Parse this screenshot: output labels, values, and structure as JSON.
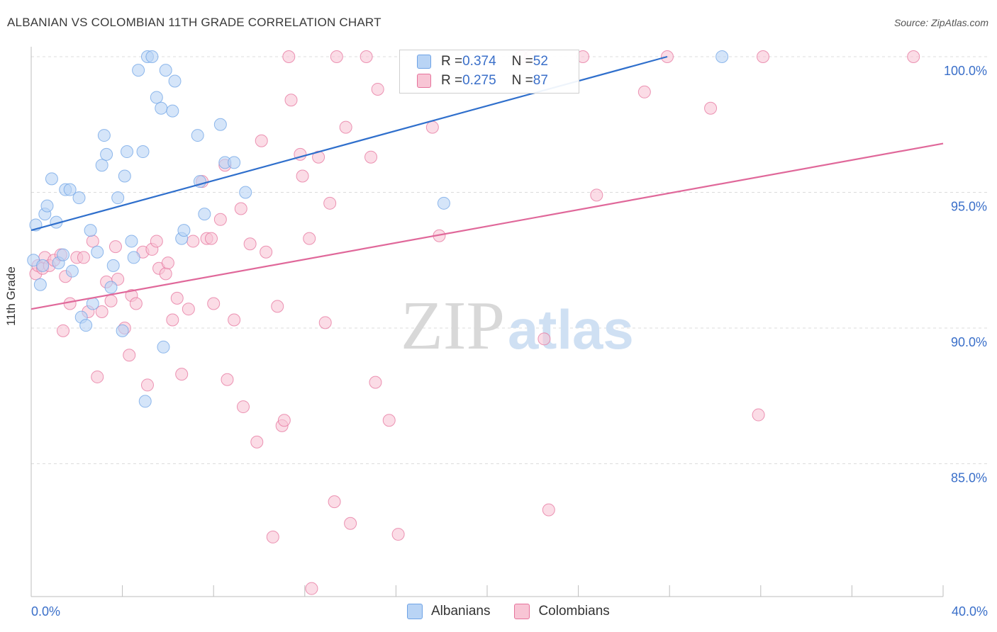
{
  "header": {
    "title": "ALBANIAN VS COLOMBIAN 11TH GRADE CORRELATION CHART",
    "source": "Source: ZipAtlas.com"
  },
  "watermark": {
    "text_zip": "ZIP",
    "text_atlas": "atlas"
  },
  "legend": {
    "rows": [
      {
        "r_label": "R = ",
        "r_value": "0.374",
        "n_label": "N = ",
        "n_value": "52",
        "color": "#a8c8f0"
      },
      {
        "r_label": "R = ",
        "r_value": "0.275",
        "n_label": "N = ",
        "n_value": "87",
        "color": "#f6b8cb"
      }
    ]
  },
  "bottom_legend": {
    "albanians": "Albanians",
    "colombians": "Colombians"
  },
  "x_axis_labels": {
    "min": "0.0%",
    "max": "40.0%"
  },
  "chart_data": {
    "type": "scatter",
    "title": "ALBANIAN VS COLOMBIAN 11TH GRADE CORRELATION CHART",
    "xlabel": "",
    "ylabel": "11th Grade",
    "xlim": [
      0,
      40
    ],
    "ylim": [
      80.3,
      100.6
    ],
    "y_ticks": [
      85,
      90,
      95,
      100
    ],
    "y_tick_labels": [
      "85.0%",
      "90.0%",
      "95.0%",
      "100.0%"
    ],
    "grid": "horizontal-dashed",
    "series": [
      {
        "name": "Albanians",
        "color": "#6ea3e6",
        "fill": "#b9d4f5",
        "trend": [
          [
            0.0,
            93.6
          ],
          [
            27.9,
            100.0
          ]
        ],
        "points": [
          [
            0.1,
            92.5
          ],
          [
            0.2,
            93.8
          ],
          [
            0.4,
            91.6
          ],
          [
            0.6,
            94.2
          ],
          [
            0.7,
            94.5
          ],
          [
            0.9,
            95.5
          ],
          [
            1.1,
            93.9
          ],
          [
            1.2,
            92.4
          ],
          [
            1.4,
            92.7
          ],
          [
            1.5,
            95.1
          ],
          [
            1.7,
            95.1
          ],
          [
            1.8,
            92.1
          ],
          [
            2.1,
            94.8
          ],
          [
            2.2,
            90.4
          ],
          [
            2.4,
            90.1
          ],
          [
            2.6,
            93.6
          ],
          [
            2.7,
            90.9
          ],
          [
            2.9,
            92.8
          ],
          [
            3.1,
            96.0
          ],
          [
            3.2,
            97.1
          ],
          [
            3.3,
            96.4
          ],
          [
            3.5,
            91.5
          ],
          [
            3.6,
            92.3
          ],
          [
            3.8,
            94.8
          ],
          [
            4.0,
            89.9
          ],
          [
            4.1,
            95.6
          ],
          [
            4.2,
            96.5
          ],
          [
            4.4,
            93.2
          ],
          [
            4.5,
            92.6
          ],
          [
            4.7,
            99.5
          ],
          [
            4.9,
            96.5
          ],
          [
            5.0,
            87.3
          ],
          [
            5.1,
            100.0
          ],
          [
            5.3,
            100.0
          ],
          [
            5.5,
            98.5
          ],
          [
            5.7,
            98.1
          ],
          [
            5.8,
            89.3
          ],
          [
            5.9,
            99.5
          ],
          [
            6.2,
            98.0
          ],
          [
            6.3,
            99.1
          ],
          [
            6.6,
            93.3
          ],
          [
            6.7,
            93.6
          ],
          [
            7.3,
            97.1
          ],
          [
            7.4,
            95.4
          ],
          [
            7.6,
            94.2
          ],
          [
            8.3,
            97.5
          ],
          [
            8.5,
            96.1
          ],
          [
            8.9,
            96.1
          ],
          [
            9.4,
            95.0
          ],
          [
            18.1,
            94.6
          ],
          [
            30.3,
            100.0
          ],
          [
            0.5,
            92.3
          ]
        ]
      },
      {
        "name": "Colombians",
        "color": "#e6739c",
        "fill": "#f8c5d5",
        "trend": [
          [
            0.0,
            90.7
          ],
          [
            40.0,
            96.8
          ]
        ],
        "points": [
          [
            0.2,
            92.0
          ],
          [
            0.3,
            92.3
          ],
          [
            0.5,
            92.2
          ],
          [
            0.6,
            92.6
          ],
          [
            0.8,
            92.3
          ],
          [
            1.0,
            92.5
          ],
          [
            1.3,
            92.7
          ],
          [
            1.4,
            89.9
          ],
          [
            1.5,
            91.9
          ],
          [
            1.7,
            90.9
          ],
          [
            2.0,
            92.6
          ],
          [
            2.3,
            92.6
          ],
          [
            2.5,
            90.6
          ],
          [
            2.7,
            93.2
          ],
          [
            2.9,
            88.2
          ],
          [
            3.1,
            90.6
          ],
          [
            3.3,
            91.7
          ],
          [
            3.5,
            91.0
          ],
          [
            3.7,
            93.0
          ],
          [
            3.8,
            91.8
          ],
          [
            4.1,
            90.0
          ],
          [
            4.3,
            89.0
          ],
          [
            4.4,
            91.2
          ],
          [
            4.6,
            90.9
          ],
          [
            4.9,
            92.8
          ],
          [
            5.1,
            87.9
          ],
          [
            5.3,
            92.9
          ],
          [
            5.5,
            93.2
          ],
          [
            5.6,
            92.2
          ],
          [
            5.9,
            92.0
          ],
          [
            6.0,
            92.4
          ],
          [
            6.2,
            90.3
          ],
          [
            6.4,
            91.1
          ],
          [
            6.6,
            88.3
          ],
          [
            6.9,
            90.7
          ],
          [
            7.1,
            93.2
          ],
          [
            7.5,
            95.4
          ],
          [
            7.7,
            93.3
          ],
          [
            7.9,
            93.3
          ],
          [
            8.0,
            90.9
          ],
          [
            8.3,
            94.0
          ],
          [
            8.5,
            96.0
          ],
          [
            8.6,
            88.1
          ],
          [
            8.9,
            90.3
          ],
          [
            9.2,
            94.4
          ],
          [
            9.3,
            87.1
          ],
          [
            9.6,
            93.1
          ],
          [
            9.9,
            85.8
          ],
          [
            10.1,
            96.9
          ],
          [
            10.3,
            92.8
          ],
          [
            10.6,
            82.3
          ],
          [
            10.8,
            90.8
          ],
          [
            11.0,
            86.4
          ],
          [
            11.1,
            86.6
          ],
          [
            11.3,
            100.0
          ],
          [
            11.4,
            98.4
          ],
          [
            11.8,
            96.4
          ],
          [
            11.9,
            95.6
          ],
          [
            12.2,
            93.3
          ],
          [
            12.3,
            80.4
          ],
          [
            12.6,
            96.3
          ],
          [
            12.9,
            90.2
          ],
          [
            13.1,
            94.6
          ],
          [
            13.3,
            83.6
          ],
          [
            13.4,
            100.0
          ],
          [
            13.8,
            97.4
          ],
          [
            14.0,
            82.8
          ],
          [
            14.7,
            100.0
          ],
          [
            14.9,
            96.3
          ],
          [
            15.1,
            88.0
          ],
          [
            15.2,
            98.8
          ],
          [
            15.7,
            86.6
          ],
          [
            16.1,
            82.4
          ],
          [
            17.6,
            97.4
          ],
          [
            17.9,
            93.4
          ],
          [
            21.5,
            100.0
          ],
          [
            22.5,
            89.6
          ],
          [
            22.7,
            83.3
          ],
          [
            24.2,
            100.0
          ],
          [
            24.8,
            94.9
          ],
          [
            26.9,
            98.7
          ],
          [
            27.9,
            100.0
          ],
          [
            29.8,
            98.1
          ],
          [
            31.9,
            86.8
          ],
          [
            32.1,
            100.0
          ],
          [
            38.7,
            100.0
          ],
          [
            21.9,
            100.0
          ]
        ]
      }
    ]
  }
}
